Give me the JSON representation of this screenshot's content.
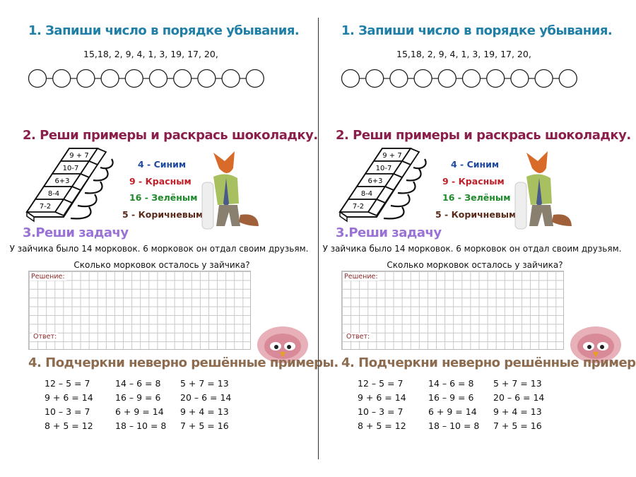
{
  "task1": {
    "title": "1. Запиши число в порядке убывания.",
    "numbers": "15,18, 2, 9, 4, 1, 3, 19, 17, 20,",
    "circle_count": 10
  },
  "task2": {
    "title": "2. Реши примеры и раскрась шоколадку.",
    "bar_examples": [
      "9 + 7",
      "10-7",
      "6+3",
      "8-4",
      "7-2"
    ],
    "legend": [
      {
        "text": "4 - Синим",
        "color": "#1f4aa0"
      },
      {
        "text": "9 - Красным",
        "color": "#c0202a"
      },
      {
        "text": "16 - Зелёным",
        "color": "#1e8a2a"
      },
      {
        "text": "5 - Коричневым",
        "color": "#5a2a1a"
      }
    ]
  },
  "task3": {
    "title": "3.Реши задачу",
    "text": "У зайчика было 14 морковок. 6 морковок он отдал своим друзьям.",
    "question": "Сколько морковок осталось у зайчика?",
    "solution_label": "Решение:",
    "answer_label": "Ответ:"
  },
  "task4": {
    "title": "4. Подчеркни неверно решённые примеры.",
    "columns": [
      [
        "12 – 5 = 7",
        "9 + 6 = 14",
        "10 – 3 = 7",
        "8 + 5 = 12"
      ],
      [
        "14 – 6 = 8",
        "16 – 9 = 6",
        "6 + 9 = 14",
        "18 – 10 = 8"
      ],
      [
        "5 + 7 = 13",
        "20 – 6 = 14",
        "9 + 4 = 13",
        "7 + 5 = 16"
      ]
    ]
  }
}
